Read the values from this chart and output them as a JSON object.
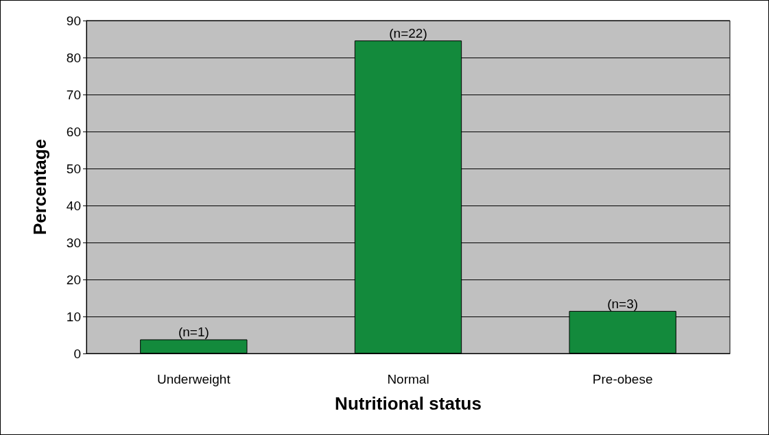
{
  "chart_data": {
    "type": "bar",
    "xlabel": "Nutritional status",
    "ylabel": "Percentage",
    "categories": [
      "Underweight",
      "Normal",
      "Pre-obese"
    ],
    "values": [
      3.8,
      84.6,
      11.5
    ],
    "color": "#138a3c",
    "annotations": [
      {
        "text": "(n=1)",
        "x": "Underweight",
        "y": 3.8
      },
      {
        "text": "(n=22)",
        "x": "Normal",
        "y": 84.6
      },
      {
        "text": "(n=3)",
        "x": "Pre-obese",
        "y": 11.5
      }
    ],
    "ylim": [
      0,
      90
    ],
    "yticks": [
      0,
      10,
      20,
      30,
      40,
      50,
      60,
      70,
      80,
      90
    ],
    "grid": "y"
  }
}
